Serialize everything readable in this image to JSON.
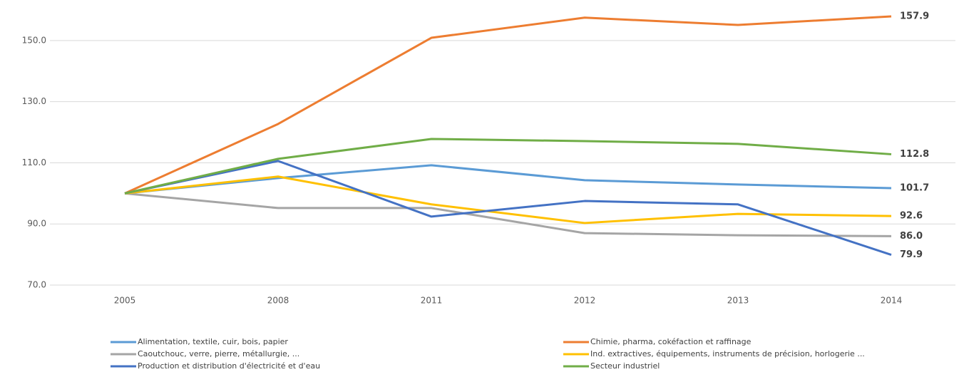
{
  "chart_data": {
    "type": "line",
    "categories": [
      "2005",
      "2008",
      "2011",
      "2012",
      "2013",
      "2014"
    ],
    "ylim": [
      70,
      160
    ],
    "yticks": [
      {
        "value": 70,
        "label": "70.0"
      },
      {
        "value": 90,
        "label": "90.0"
      },
      {
        "value": 110,
        "label": "110.0"
      },
      {
        "value": 130,
        "label": "130.0"
      },
      {
        "value": 150,
        "label": "150.0"
      }
    ],
    "grid": true,
    "legend": "bottom",
    "series": [
      {
        "name": "Alimentation, textile, cuir, bois, papier",
        "color": "#5b9bd5",
        "values": [
          100,
          105,
          109.2,
          104.3,
          102.9,
          101.7
        ],
        "value_labels": [
          null,
          null,
          null,
          null,
          null,
          "101.7"
        ]
      },
      {
        "name": "Chimie, pharma, cokéfaction et raffinage",
        "color": "#ed7d31",
        "values": [
          100,
          122.7,
          150.9,
          157.5,
          155.1,
          157.9
        ],
        "value_labels": [
          null,
          null,
          null,
          null,
          null,
          "157.9"
        ]
      },
      {
        "name": "Caoutchouc, verre, pierre, métallurgie, ...",
        "color": "#a5a5a5",
        "values": [
          100,
          95.2,
          95.2,
          87,
          86.3,
          86
        ],
        "value_labels": [
          null,
          null,
          null,
          null,
          null,
          "86.0"
        ]
      },
      {
        "name": "Ind. extractives,  équipements, instruments de précision, horlogerie ...",
        "color": "#ffc000",
        "values": [
          100,
          105.5,
          96.4,
          90.3,
          93.3,
          92.6
        ],
        "value_labels": [
          null,
          null,
          null,
          null,
          null,
          "92.6"
        ]
      },
      {
        "name": "Production et distribution d'électricité et d'eau",
        "color": "#4472c4",
        "values": [
          100,
          110.6,
          92.4,
          97.5,
          96.4,
          79.9
        ],
        "value_labels": [
          null,
          null,
          null,
          null,
          null,
          "79.9"
        ]
      },
      {
        "name": "Secteur industriel",
        "color": "#70ad47",
        "values": [
          100,
          111.3,
          117.8,
          117.1,
          116.2,
          112.8
        ],
        "value_labels": [
          null,
          null,
          null,
          null,
          null,
          "112.8"
        ]
      }
    ]
  }
}
